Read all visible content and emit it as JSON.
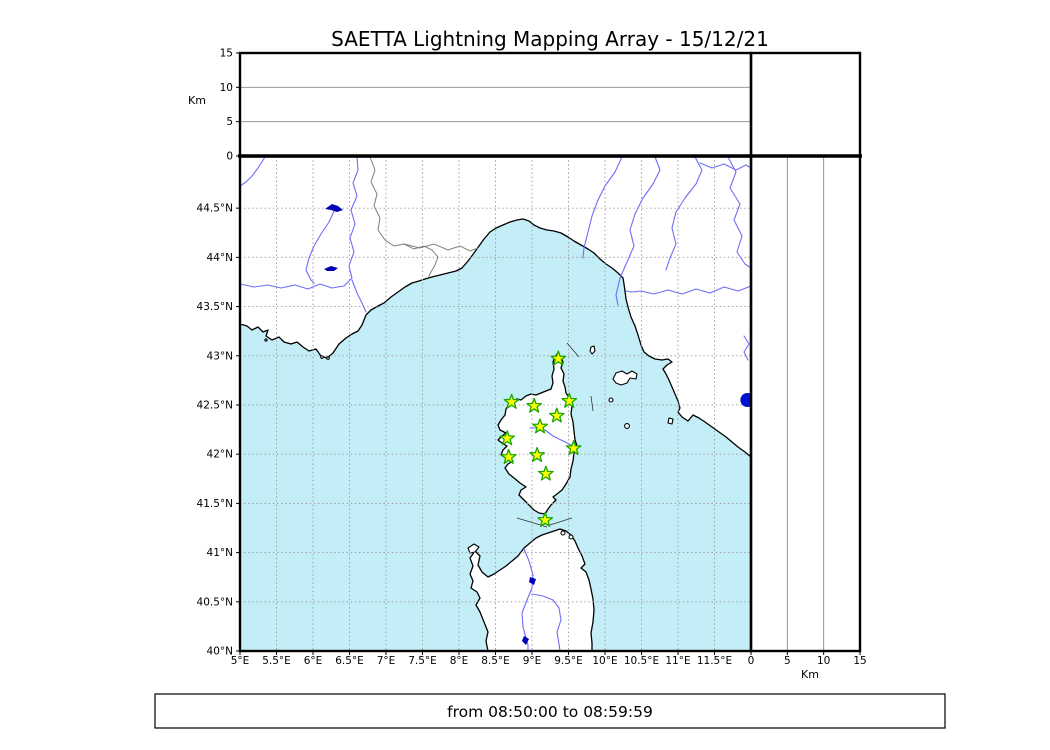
{
  "title": "SAETTA Lightning Mapping Array - 15/12/21",
  "footer": "from 08:50:00 to 08:59:59",
  "colors": {
    "sea": "#c3edf7",
    "land": "#ffffff",
    "coast": "#000000",
    "river": "#6e6ef8",
    "lake": "#0000b4",
    "lake_dot": "#0011cd",
    "admin_border": "#808080",
    "grid": "#999999",
    "panel_grid": "#888888",
    "station_fill": "#ffff00",
    "station_stroke": "#18a800",
    "frame": "#000000"
  },
  "altitude_axis": {
    "label": "Km",
    "ticks": [
      0,
      5,
      10,
      15
    ],
    "grid_ticks": [
      5,
      10
    ],
    "max": 15
  },
  "map_axes": {
    "lon": {
      "min": 5,
      "max": 12,
      "tick_values": [
        5,
        5.5,
        6,
        6.5,
        7,
        7.5,
        8,
        8.5,
        9,
        9.5,
        10,
        10.5,
        11,
        11.5
      ],
      "tick_labels": [
        "5°E",
        "5.5°E",
        "6°E",
        "6.5°E",
        "7°E",
        "7.5°E",
        "8°E",
        "8.5°E",
        "9°E",
        "9.5°E",
        "10°E",
        "10.5°E",
        "11°E",
        "11.5°E"
      ]
    },
    "lat": {
      "min": 40,
      "max": 45.03,
      "tick_values": [
        40,
        40.5,
        41,
        41.5,
        42,
        42.5,
        43,
        43.5,
        44,
        44.5
      ],
      "tick_labels": [
        "40°N",
        "40.5°N",
        "41°N",
        "41.5°N",
        "42°N",
        "42.5°N",
        "43°N",
        "43.5°N",
        "44°N",
        "44.5°N"
      ]
    }
  },
  "chart_data": {
    "type": "scatter",
    "title": "SAETTA Lightning Mapping Array - 15/12/21",
    "time_window": "from 08:50:00 to 08:59:59",
    "projection": "equirectangular",
    "lon_range": [
      5,
      12
    ],
    "lat_range": [
      40,
      45.03
    ],
    "altitude_range_km": [
      0,
      15
    ],
    "grid": true,
    "series": [
      {
        "name": "LMA stations",
        "marker": "star",
        "points": [
          {
            "lon": 9.36,
            "lat": 42.97
          },
          {
            "lon": 8.72,
            "lat": 42.53
          },
          {
            "lon": 9.03,
            "lat": 42.49
          },
          {
            "lon": 9.51,
            "lat": 42.54
          },
          {
            "lon": 9.34,
            "lat": 42.39
          },
          {
            "lon": 9.11,
            "lat": 42.28
          },
          {
            "lon": 8.66,
            "lat": 42.16
          },
          {
            "lon": 9.57,
            "lat": 42.06
          },
          {
            "lon": 9.07,
            "lat": 41.99
          },
          {
            "lon": 8.68,
            "lat": 41.97
          },
          {
            "lon": 9.19,
            "lat": 41.8
          },
          {
            "lon": 9.18,
            "lat": 41.33
          }
        ]
      },
      {
        "name": "lake marker",
        "marker": "circle",
        "points": [
          {
            "lon": 11.95,
            "lat": 42.55
          }
        ]
      }
    ]
  }
}
